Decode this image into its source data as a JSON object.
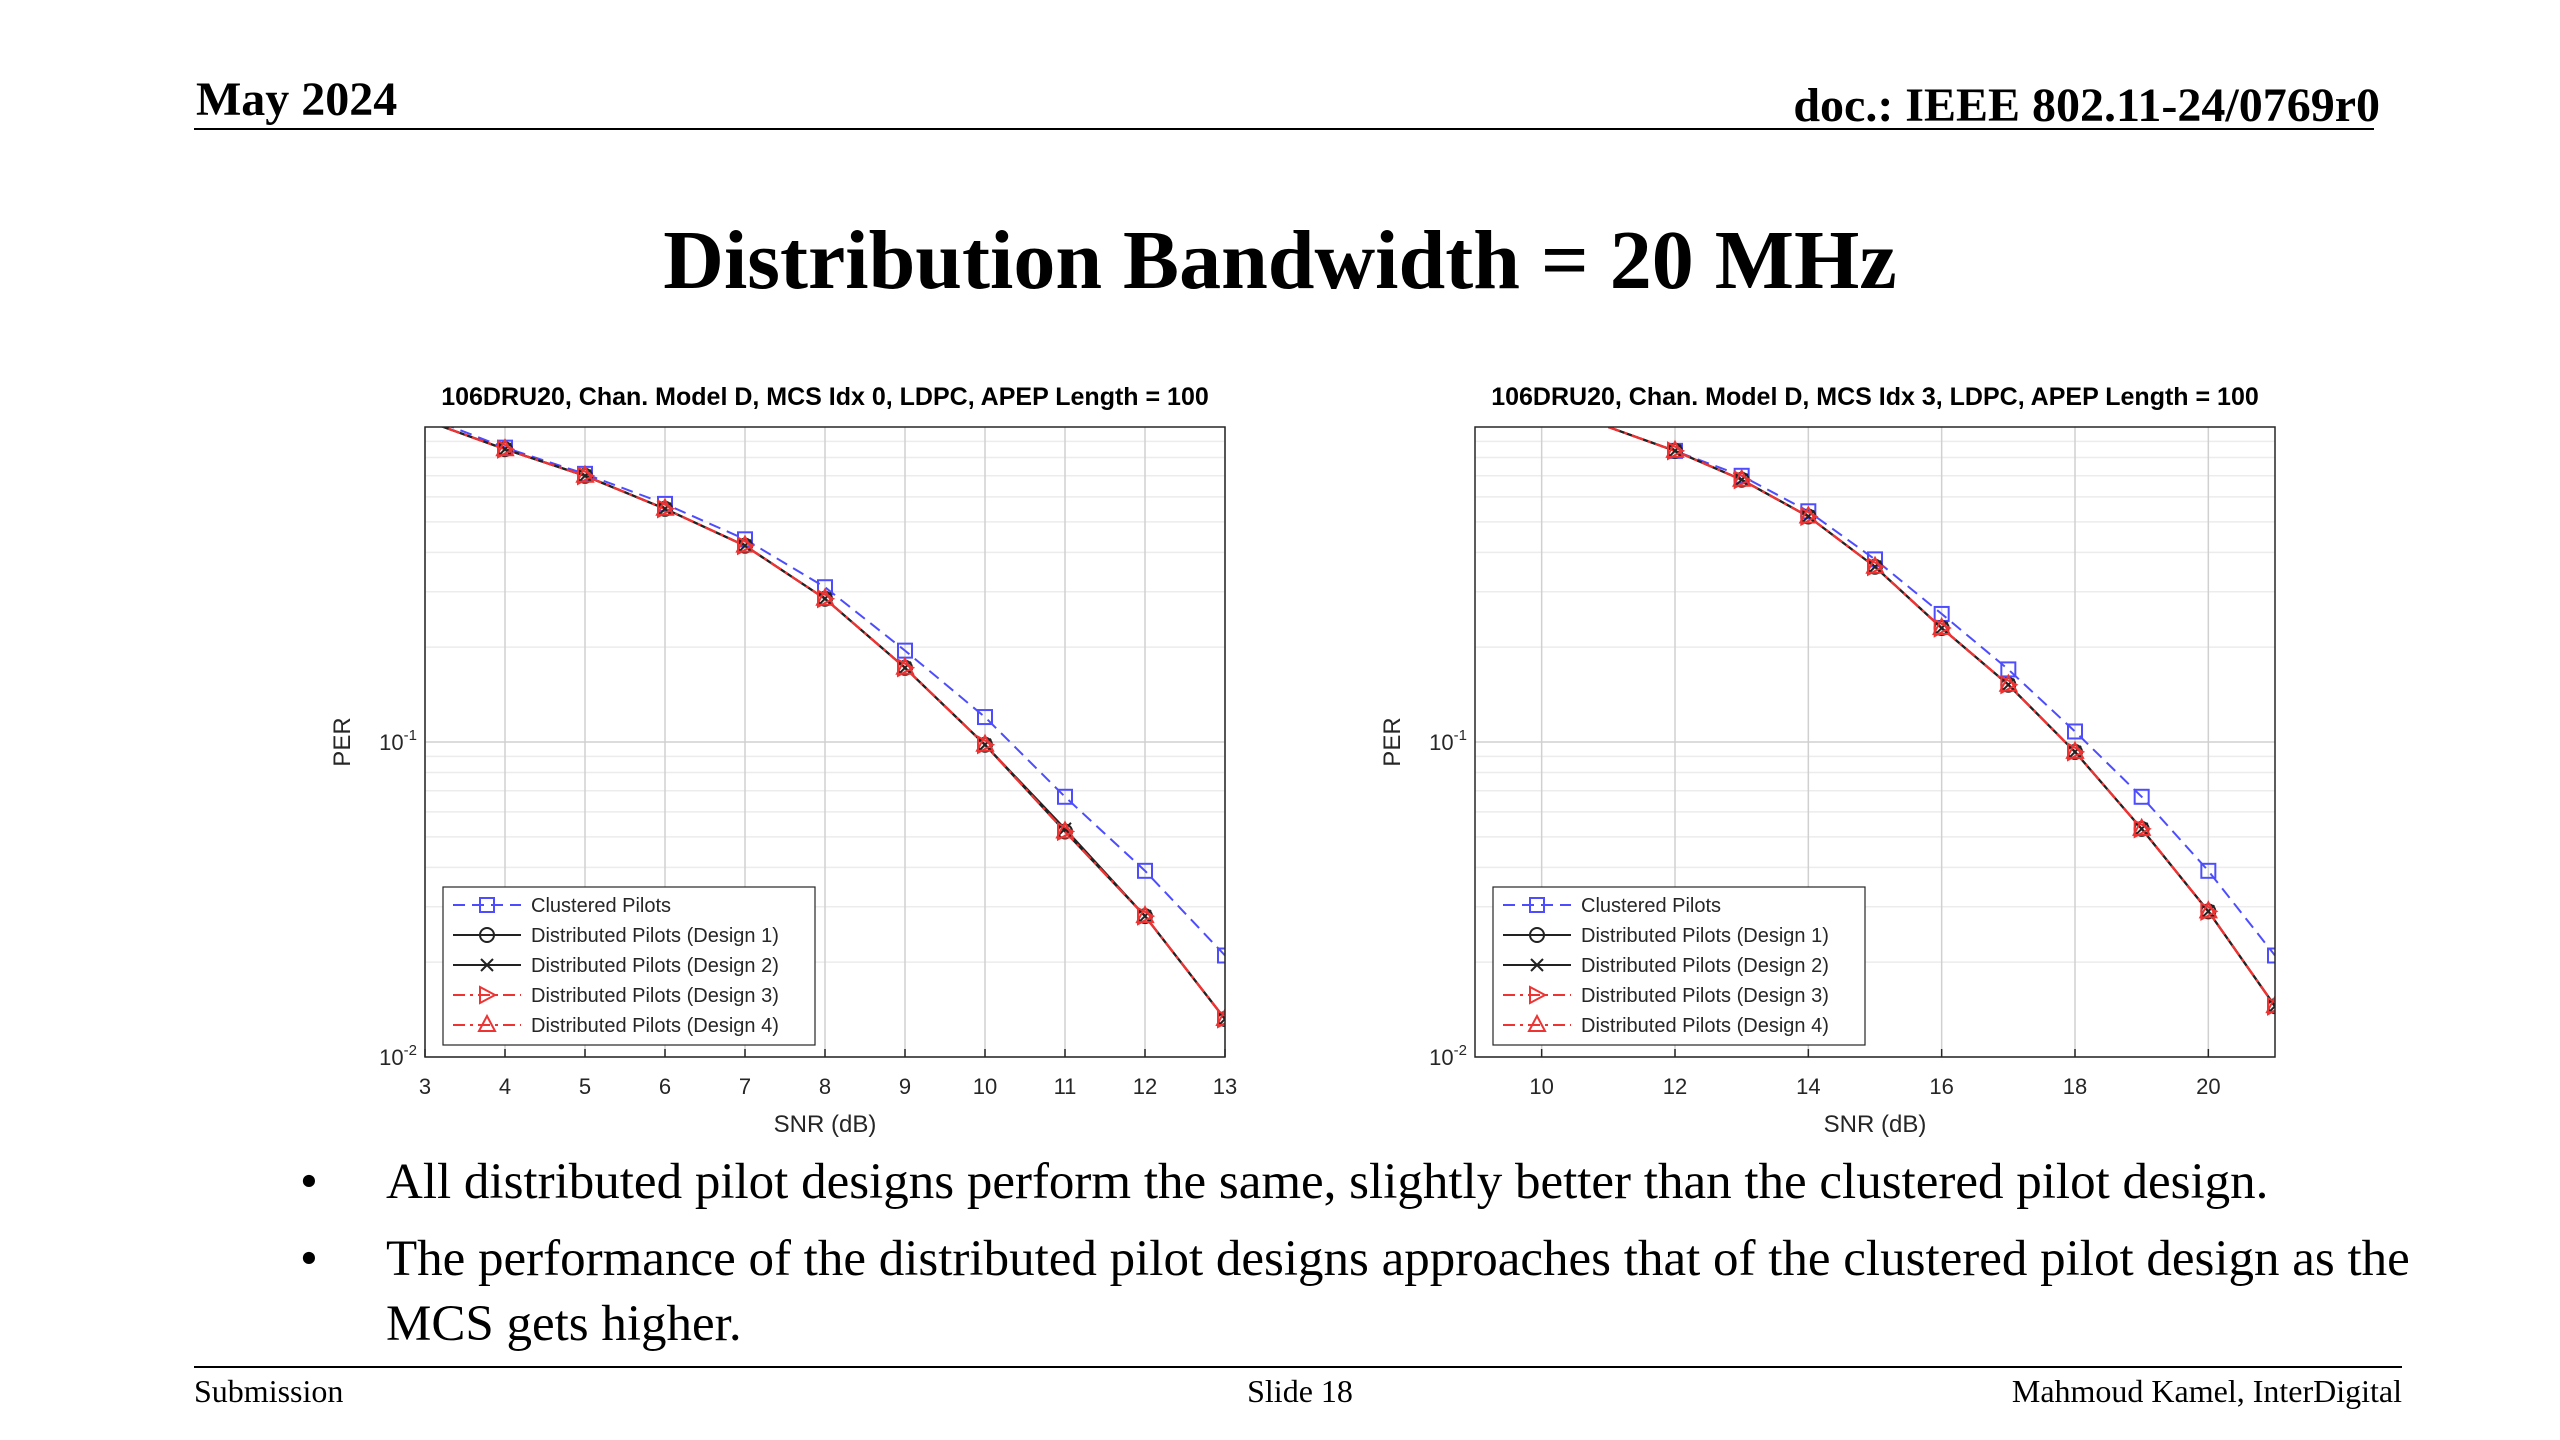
{
  "header": {
    "date": "May 2024",
    "doc": "doc.: IEEE 802.11-24/0769r0"
  },
  "title": "Distribution Bandwidth = 20 MHz",
  "bullets": [
    "All distributed pilot designs perform the same, slightly better than the clustered pilot design.",
    "The performance of the distributed pilot designs approaches that of the clustered pilot design as the MCS gets higher."
  ],
  "footer": {
    "left": "Submission",
    "center": "Slide 18",
    "right": "Mahmoud Kamel, InterDigital"
  },
  "chart_data": [
    {
      "type": "line",
      "title": "106DRU20, Chan. Model D, MCS Idx 0, LDPC, APEP Length = 100",
      "xlabel": "SNR (dB)",
      "ylabel": "PER",
      "xlim": [
        3,
        13
      ],
      "ylim": [
        0.01,
        1
      ],
      "yscale": "log",
      "xticks": [
        3,
        4,
        5,
        6,
        7,
        8,
        9,
        10,
        11,
        12,
        13
      ],
      "yticks": [
        {
          "value": 0.1,
          "base": "10",
          "exp": "-1"
        },
        {
          "value": 0.01,
          "base": "10",
          "exp": "-2"
        }
      ],
      "grid": true,
      "legend_position": "bottom-left",
      "series": [
        {
          "name": "Clustered Pilots",
          "color": "#4d4dff",
          "dash": "dashed",
          "marker": "square",
          "x": [
            3,
            4,
            5,
            6,
            7,
            8,
            9,
            10,
            11,
            12,
            13
          ],
          "y": [
            1.08,
            0.86,
            0.71,
            0.57,
            0.44,
            0.31,
            0.195,
            0.12,
            0.067,
            0.039,
            0.021
          ]
        },
        {
          "name": "Distributed Pilots (Design 1)",
          "color": "#222222",
          "dash": "solid",
          "marker": "circle",
          "x": [
            3,
            4,
            5,
            6,
            7,
            8,
            9,
            10,
            11,
            12,
            13
          ],
          "y": [
            1.05,
            0.85,
            0.7,
            0.55,
            0.42,
            0.285,
            0.172,
            0.098,
            0.052,
            0.028,
            0.0132
          ]
        },
        {
          "name": "Distributed Pilots (Design 2)",
          "color": "#222222",
          "dash": "solid",
          "marker": "x",
          "x": [
            3,
            4,
            5,
            6,
            7,
            8,
            9,
            10,
            11,
            12,
            13
          ],
          "y": [
            1.05,
            0.85,
            0.7,
            0.55,
            0.42,
            0.285,
            0.172,
            0.098,
            0.053,
            0.028,
            0.0132
          ]
        },
        {
          "name": "Distributed Pilots (Design 3)",
          "color": "#ee3333",
          "dash": "dashdot",
          "marker": "triangle-right",
          "x": [
            3,
            4,
            5,
            6,
            7,
            8,
            9,
            10,
            11,
            12,
            13
          ],
          "y": [
            1.05,
            0.85,
            0.7,
            0.55,
            0.42,
            0.285,
            0.172,
            0.098,
            0.052,
            0.028,
            0.0132
          ]
        },
        {
          "name": "Distributed Pilots (Design 4)",
          "color": "#ee3333",
          "dash": "dashdot",
          "marker": "triangle-up",
          "x": [
            3,
            4,
            5,
            6,
            7,
            8,
            9,
            10,
            11,
            12,
            13
          ],
          "y": [
            1.05,
            0.85,
            0.7,
            0.55,
            0.42,
            0.285,
            0.172,
            0.098,
            0.052,
            0.028,
            0.0132
          ]
        }
      ]
    },
    {
      "type": "line",
      "title": "106DRU20, Chan. Model D, MCS Idx 3, LDPC, APEP Length = 100",
      "xlabel": "SNR (dB)",
      "ylabel": "PER",
      "xlim": [
        9,
        21
      ],
      "ylim": [
        0.01,
        1
      ],
      "yscale": "log",
      "xticks": [
        10,
        12,
        14,
        16,
        18,
        20
      ],
      "yticks": [
        {
          "value": 0.1,
          "base": "10",
          "exp": "-1"
        },
        {
          "value": 0.01,
          "base": "10",
          "exp": "-2"
        }
      ],
      "grid": true,
      "legend_position": "bottom-left",
      "series": [
        {
          "name": "Clustered Pilots",
          "color": "#4d4dff",
          "dash": "dashed",
          "marker": "square",
          "x": [
            11,
            12,
            13,
            14,
            15,
            16,
            17,
            18,
            19,
            20,
            21
          ],
          "y": [
            1.0,
            0.84,
            0.7,
            0.54,
            0.38,
            0.255,
            0.17,
            0.108,
            0.067,
            0.039,
            0.021
          ]
        },
        {
          "name": "Distributed Pilots (Design 1)",
          "color": "#222222",
          "dash": "solid",
          "marker": "circle",
          "x": [
            11,
            12,
            13,
            14,
            15,
            16,
            17,
            18,
            19,
            20,
            21
          ],
          "y": [
            1.0,
            0.84,
            0.68,
            0.52,
            0.36,
            0.23,
            0.152,
            0.093,
            0.053,
            0.029,
            0.0145
          ]
        },
        {
          "name": "Distributed Pilots (Design 2)",
          "color": "#222222",
          "dash": "solid",
          "marker": "x",
          "x": [
            11,
            12,
            13,
            14,
            15,
            16,
            17,
            18,
            19,
            20,
            21
          ],
          "y": [
            1.0,
            0.84,
            0.68,
            0.52,
            0.36,
            0.23,
            0.152,
            0.093,
            0.053,
            0.029,
            0.0145
          ]
        },
        {
          "name": "Distributed Pilots (Design 3)",
          "color": "#ee3333",
          "dash": "dashdot",
          "marker": "triangle-right",
          "x": [
            11,
            12,
            13,
            14,
            15,
            16,
            17,
            18,
            19,
            20,
            21
          ],
          "y": [
            1.0,
            0.84,
            0.68,
            0.52,
            0.36,
            0.23,
            0.152,
            0.093,
            0.053,
            0.029,
            0.0145
          ]
        },
        {
          "name": "Distributed Pilots (Design 4)",
          "color": "#ee3333",
          "dash": "dashdot",
          "marker": "triangle-up",
          "x": [
            11,
            12,
            13,
            14,
            15,
            16,
            17,
            18,
            19,
            20,
            21
          ],
          "y": [
            1.0,
            0.84,
            0.68,
            0.52,
            0.36,
            0.23,
            0.152,
            0.093,
            0.053,
            0.029,
            0.0145
          ]
        }
      ]
    }
  ]
}
